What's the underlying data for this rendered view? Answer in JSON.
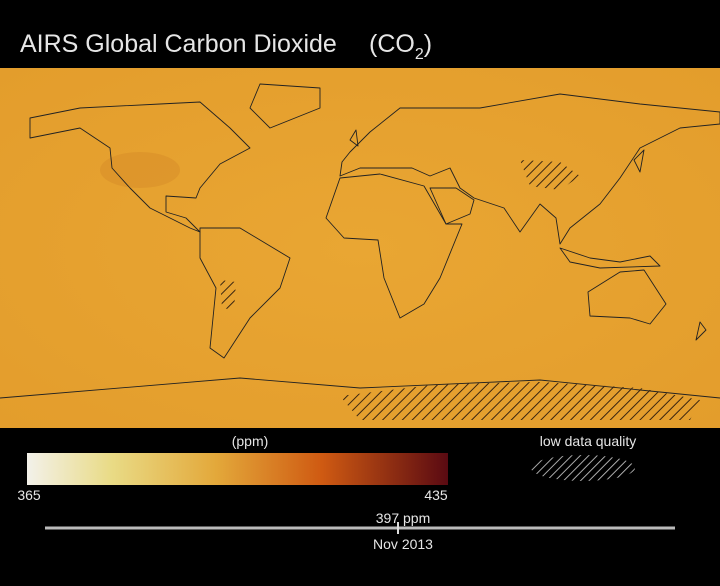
{
  "header": {
    "title": "AIRS Global Carbon Dioxide",
    "formula": "(CO",
    "subscript": "2",
    "formula_end": ")"
  },
  "legend": {
    "unit": "(ppm)",
    "min": 365,
    "max": 435,
    "low_quality_label": "low data quality"
  },
  "timeline": {
    "readout": "397 ppm",
    "date": "Nov 2013"
  }
}
